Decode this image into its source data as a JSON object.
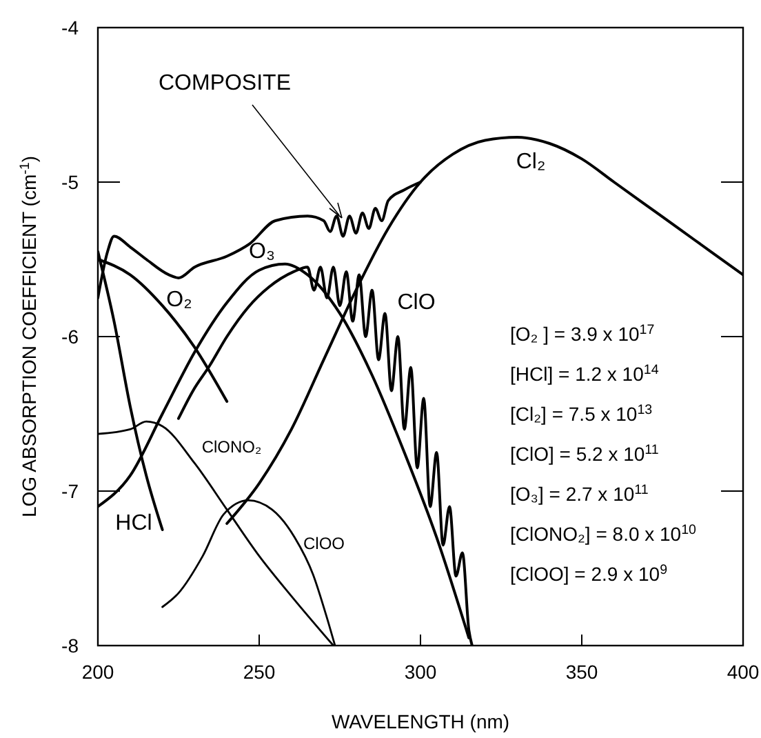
{
  "chart_data": {
    "type": "line",
    "xlabel": "WAVELENGTH (nm)",
    "ylabel": "LOG ABSORPTION COEFFICIENT (cm$^{-1}$)",
    "xlim": [
      200,
      400
    ],
    "xticks": [
      200,
      250,
      300,
      350,
      400
    ],
    "ylim": [
      -8,
      -4
    ],
    "yticks": [
      -8,
      -7,
      -6,
      -5,
      -4
    ],
    "marker": "none",
    "line_style": "solid",
    "series": [
      {
        "name": "Cl₂",
        "color": "#000000",
        "x": [
          240,
          250,
          260,
          270,
          280,
          290,
          300,
          310,
          320,
          330,
          340,
          350,
          360,
          370,
          380,
          390,
          400
        ],
        "values": [
          -7.21,
          -6.95,
          -6.6,
          -6.15,
          -5.7,
          -5.3,
          -5.0,
          -4.82,
          -4.73,
          -4.71,
          -4.75,
          -4.85,
          -5.0,
          -5.15,
          -5.3,
          -5.45,
          -5.6
        ]
      },
      {
        "name": "COMPOSITE",
        "color": "#000000",
        "x": [
          200,
          203,
          205,
          210,
          215,
          222,
          225,
          230,
          240,
          247,
          255,
          265,
          270,
          272,
          274,
          276,
          278,
          280,
          282,
          284,
          286,
          288,
          290,
          295,
          300
        ],
        "values": [
          -5.75,
          -5.45,
          -5.35,
          -5.42,
          -5.5,
          -5.6,
          -5.62,
          -5.55,
          -5.48,
          -5.4,
          -5.25,
          -5.22,
          -5.25,
          -5.32,
          -5.22,
          -5.35,
          -5.22,
          -5.33,
          -5.2,
          -5.3,
          -5.17,
          -5.25,
          -5.12,
          -5.05,
          -5.0
        ]
      },
      {
        "name": "O₃",
        "color": "#000000",
        "x": [
          200,
          210,
          220,
          230,
          240,
          250,
          258,
          265,
          275,
          285,
          295,
          305,
          315
        ],
        "values": [
          -7.1,
          -6.9,
          -6.5,
          -6.1,
          -5.78,
          -5.57,
          -5.53,
          -5.6,
          -5.85,
          -6.25,
          -6.75,
          -7.3,
          -7.95
        ]
      },
      {
        "name": "ClO",
        "color": "#000000",
        "x": [
          225,
          229.5,
          234.6,
          240,
          246.6,
          253,
          260.7,
          265,
          267,
          269,
          271,
          273,
          275,
          277,
          279,
          281,
          283,
          285,
          287,
          289,
          291,
          293,
          295,
          297,
          299,
          301,
          303,
          305,
          307,
          309,
          311,
          313,
          315,
          316
        ],
        "values": [
          -6.53,
          -6.35,
          -6.19,
          -6.0,
          -5.81,
          -5.68,
          -5.58,
          -5.55,
          -5.7,
          -5.55,
          -5.75,
          -5.55,
          -5.8,
          -5.58,
          -5.9,
          -5.6,
          -6.0,
          -5.7,
          -6.15,
          -5.85,
          -6.35,
          -6.0,
          -6.6,
          -6.2,
          -6.85,
          -6.4,
          -7.1,
          -6.75,
          -7.35,
          -7.1,
          -7.55,
          -7.4,
          -7.9,
          -8.0
        ]
      },
      {
        "name": "HCl",
        "color": "#000000",
        "x": [
          200,
          205,
          210,
          215,
          220
        ],
        "values": [
          -5.45,
          -5.9,
          -6.45,
          -6.9,
          -7.25
        ]
      },
      {
        "name": "O₂",
        "color": "#000000",
        "x": [
          200,
          210,
          220,
          230,
          240
        ],
        "values": [
          -5.5,
          -5.6,
          -5.8,
          -6.07,
          -6.42
        ]
      },
      {
        "name": "ClONO₂",
        "color": "#000000",
        "x": [
          200,
          210,
          215,
          220,
          230,
          240,
          250,
          260,
          273
        ],
        "values": [
          -6.63,
          -6.6,
          -6.55,
          -6.58,
          -6.82,
          -7.12,
          -7.42,
          -7.68,
          -8.0
        ]
      },
      {
        "name": "ClOO",
        "color": "#000000",
        "x": [
          220,
          225,
          232.5,
          239,
          246.6,
          254,
          261,
          266.7,
          271,
          273.5
        ],
        "values": [
          -7.75,
          -7.66,
          -7.42,
          -7.15,
          -7.06,
          -7.12,
          -7.3,
          -7.54,
          -7.82,
          -8.0
        ]
      }
    ],
    "annotations": [
      "[O₂ ] = 3.9 x 10$^{17}$",
      "[HCl] = 1.2 x 10$^{14}$",
      "[Cl₂] = 7.5 x 10$^{13}$",
      "[ClO] = 5.2 x 10$^{11}$",
      "[O₃] = 2.7 x 10$^{11}$",
      "[ClONO₂] = 8.0 x 10$^{10}$",
      "[ClOO] = 2.9 x 10$^{9}$"
    ]
  }
}
